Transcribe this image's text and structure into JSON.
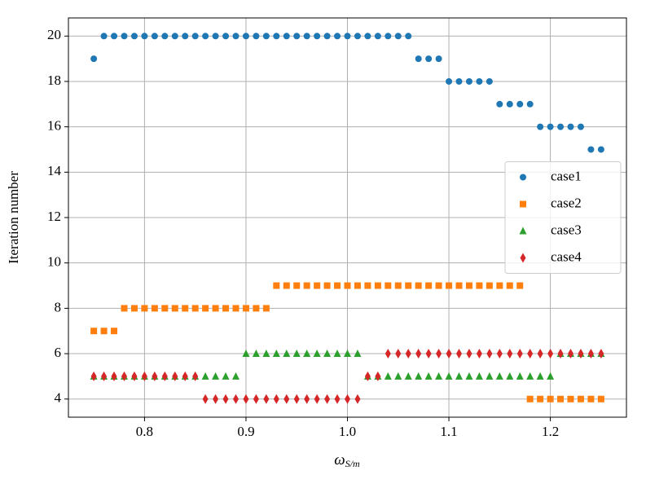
{
  "chart_data": {
    "type": "scatter",
    "xlabel_symbol": "ω",
    "xlabel_subscript": "S/m",
    "ylabel": "Iteration number",
    "x": [
      0.75,
      0.76,
      0.77,
      0.78,
      0.79,
      0.8,
      0.81,
      0.82,
      0.83,
      0.84,
      0.85,
      0.86,
      0.87,
      0.88,
      0.89,
      0.9,
      0.91,
      0.92,
      0.93,
      0.94,
      0.95,
      0.96,
      0.97,
      0.98,
      0.99,
      1.0,
      1.01,
      1.02,
      1.03,
      1.04,
      1.05,
      1.06,
      1.07,
      1.08,
      1.09,
      1.1,
      1.11,
      1.12,
      1.13,
      1.14,
      1.15,
      1.16,
      1.17,
      1.18,
      1.19,
      1.2,
      1.21,
      1.22,
      1.23,
      1.24,
      1.25
    ],
    "series": [
      {
        "name": "case1",
        "color": "#1f77b4",
        "marker": "circle",
        "values": [
          19,
          20,
          20,
          20,
          20,
          20,
          20,
          20,
          20,
          20,
          20,
          20,
          20,
          20,
          20,
          20,
          20,
          20,
          20,
          20,
          20,
          20,
          20,
          20,
          20,
          20,
          20,
          20,
          20,
          20,
          20,
          20,
          19,
          19,
          19,
          18,
          18,
          18,
          18,
          18,
          17,
          17,
          17,
          17,
          16,
          16,
          16,
          16,
          16,
          15,
          15
        ]
      },
      {
        "name": "case2",
        "color": "#ff7f0e",
        "marker": "square",
        "values": [
          7,
          7,
          7,
          8,
          8,
          8,
          8,
          8,
          8,
          8,
          8,
          8,
          8,
          8,
          8,
          8,
          8,
          8,
          9,
          9,
          9,
          9,
          9,
          9,
          9,
          9,
          9,
          9,
          9,
          9,
          9,
          9,
          9,
          9,
          9,
          9,
          9,
          9,
          9,
          9,
          9,
          9,
          9,
          4,
          4,
          4,
          4,
          4,
          4,
          4,
          4
        ]
      },
      {
        "name": "case3",
        "color": "#2ca02c",
        "marker": "triangle",
        "values": [
          5,
          5,
          5,
          5,
          5,
          5,
          5,
          5,
          5,
          5,
          5,
          5,
          5,
          5,
          5,
          6,
          6,
          6,
          6,
          6,
          6,
          6,
          6,
          6,
          6,
          6,
          6,
          5,
          5,
          5,
          5,
          5,
          5,
          5,
          5,
          5,
          5,
          5,
          5,
          5,
          5,
          5,
          5,
          5,
          5,
          5,
          6,
          6,
          6,
          6,
          6
        ]
      },
      {
        "name": "case4",
        "color": "#d62728",
        "marker": "diamond",
        "values": [
          5,
          5,
          5,
          5,
          5,
          5,
          5,
          5,
          5,
          5,
          5,
          4,
          4,
          4,
          4,
          4,
          4,
          4,
          4,
          4,
          4,
          4,
          4,
          4,
          4,
          4,
          4,
          5,
          5,
          6,
          6,
          6,
          6,
          6,
          6,
          6,
          6,
          6,
          6,
          6,
          6,
          6,
          6,
          6,
          6,
          6,
          6,
          6,
          6,
          6,
          6
        ]
      }
    ],
    "xlim": [
      0.725,
      1.275
    ],
    "xticks": [
      0.8,
      0.9,
      {
        "value": 1,
        "label": "1.0"
      },
      1.1,
      1.2
    ],
    "ylim": [
      3.2,
      20.8
    ],
    "yticks": [
      4,
      6,
      8,
      10,
      12,
      14,
      16,
      18,
      20
    ],
    "grid": true,
    "legend": "center right"
  }
}
